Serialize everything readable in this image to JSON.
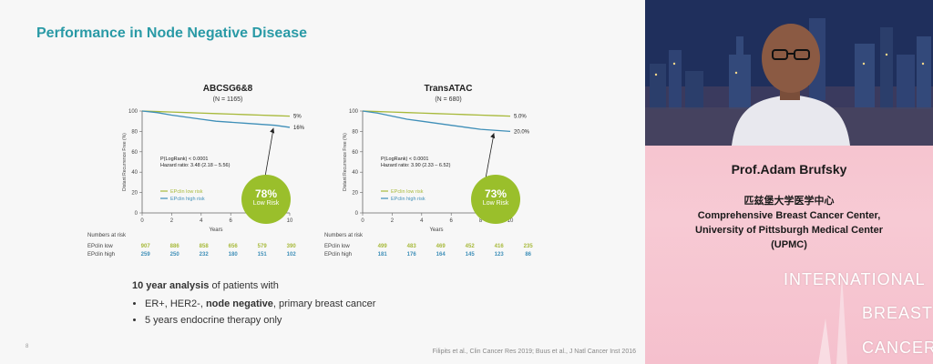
{
  "slide": {
    "title": "Performance in Node Negative Disease",
    "slide_number": "8",
    "citation": "Filipits et al., Clin Cancer Res 2019; Buus et al., J Natl Cancer Inst 2016",
    "lead_bold": "10 year analysis",
    "lead_rest": " of patients with",
    "bullet1_a": "ER+, HER2-, ",
    "bullet1_b": "node negative",
    "bullet1_c": ", primary breast cancer",
    "bullet2": "5 years endocrine therapy only"
  },
  "chart_data": [
    {
      "type": "line",
      "title": "ABCSG6&8",
      "subtitle": "(N = 1165)",
      "ylabel": "Distant Recurrence Free (%)",
      "xlabel": "Years",
      "xlim": [
        0,
        10
      ],
      "ylim": [
        0,
        100
      ],
      "xticks": [
        0,
        2,
        4,
        6,
        8,
        10
      ],
      "yticks": [
        0,
        20,
        40,
        60,
        80,
        100
      ],
      "series": [
        {
          "name": "EPclin low risk",
          "color": "#a7b93a",
          "x": [
            0,
            1,
            2,
            3,
            4,
            5,
            6,
            7,
            8,
            9,
            10
          ],
          "y": [
            100,
            99.5,
            99,
            98.5,
            98,
            97.5,
            97,
            96.5,
            96,
            95.5,
            95
          ]
        },
        {
          "name": "EPclin high risk",
          "color": "#3f8fb8",
          "x": [
            0,
            1,
            2,
            3,
            4,
            5,
            6,
            7,
            8,
            9,
            10
          ],
          "y": [
            100,
            98.5,
            96,
            94,
            92,
            90,
            89,
            88,
            87,
            86,
            84
          ]
        }
      ],
      "end_labels": [
        "5%",
        "16%"
      ],
      "stats": [
        "P(LogRank) < 0.0001",
        "Hazard ratio: 3.48 (2.18 – 5.56)"
      ],
      "callout": {
        "pct": "78%",
        "label": "Low Risk"
      },
      "numbers_at_risk_label": "Numbers at risk",
      "risk_rows": [
        {
          "name": "EPclin low",
          "color": "#a7b93a",
          "values": [
            "907",
            "886",
            "858",
            "656",
            "579",
            "390"
          ]
        },
        {
          "name": "EPclin high",
          "color": "#3f8fb8",
          "values": [
            "259",
            "250",
            "232",
            "180",
            "151",
            "102"
          ]
        }
      ]
    },
    {
      "type": "line",
      "title": "TransATAC",
      "subtitle": "(N = 680)",
      "ylabel": "Distant Recurrence Free (%)",
      "xlabel": "Years",
      "xlim": [
        0,
        10
      ],
      "ylim": [
        0,
        100
      ],
      "xticks": [
        0,
        2,
        4,
        6,
        8,
        10
      ],
      "yticks": [
        0,
        20,
        40,
        60,
        80,
        100
      ],
      "series": [
        {
          "name": "EPclin low risk",
          "color": "#a7b93a",
          "x": [
            0,
            1,
            2,
            3,
            4,
            5,
            6,
            7,
            8,
            9,
            10
          ],
          "y": [
            100,
            99.5,
            99,
            98.5,
            98,
            97.5,
            97,
            96.5,
            96,
            95.5,
            95
          ]
        },
        {
          "name": "EPclin high risk",
          "color": "#3f8fb8",
          "x": [
            0,
            1,
            2,
            3,
            4,
            5,
            6,
            7,
            8,
            9,
            10
          ],
          "y": [
            100,
            98,
            95,
            92,
            90,
            88,
            86,
            84,
            82,
            81,
            80
          ]
        }
      ],
      "end_labels": [
        "5.0%",
        "20.0%"
      ],
      "stats": [
        "P(LogRank) < 0.0001",
        "Hazard ratio: 3.90 (2.33 – 6.52)"
      ],
      "callout": {
        "pct": "73%",
        "label": "Low Risk"
      },
      "numbers_at_risk_label": "Numbers at risk",
      "risk_rows": [
        {
          "name": "EPclin low",
          "color": "#a7b93a",
          "values": [
            "499",
            "483",
            "469",
            "452",
            "416",
            "235"
          ]
        },
        {
          "name": "EPclin high",
          "color": "#3f8fb8",
          "values": [
            "181",
            "176",
            "164",
            "145",
            "123",
            "86"
          ]
        }
      ]
    }
  ],
  "panel": {
    "speaker_name": "Prof.Adam Brufsky",
    "aff_cn": "匹兹堡大学医学中心",
    "aff_en1": "Comprehensive Breast Cancer Center,",
    "aff_en2": "University of Pittsburgh Medical Center",
    "aff_en3": "(UPMC)",
    "ibc1": "INTERNATIONAL",
    "ibc2": "BREAST",
    "ibc3": "CANCER"
  }
}
